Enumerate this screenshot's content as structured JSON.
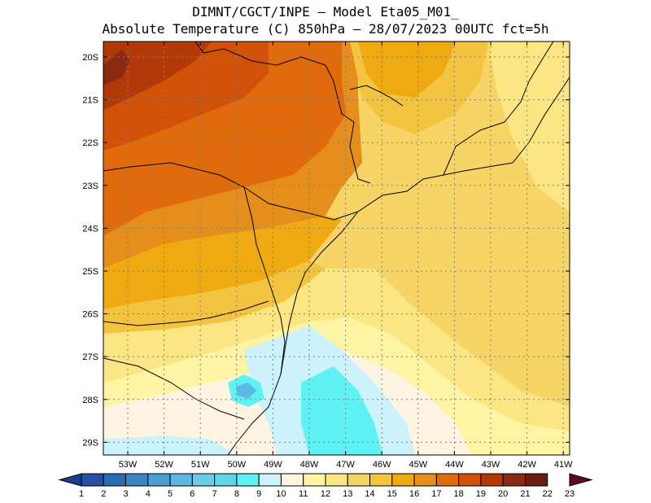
{
  "title": {
    "line1": "DIMNT/CGCT/INPE –  Model Eta05_M01_",
    "line2": "Absolute Temperature (C) 850hPa –  28/07/2023 00UTC fct=5h"
  },
  "map": {
    "lat_labels": [
      "20S",
      "21S",
      "22S",
      "23S",
      "24S",
      "25S",
      "26S",
      "27S",
      "28S",
      "29S"
    ],
    "lon_labels": [
      "53W",
      "52W",
      "51W",
      "50W",
      "49W",
      "48W",
      "47W",
      "46W",
      "45W",
      "44W",
      "43W",
      "42W",
      "41W"
    ]
  },
  "colorbar": {
    "labels": [
      "1",
      "2",
      "3",
      "4",
      "5",
      "6",
      "7",
      "8",
      "9",
      "10",
      "11",
      "12",
      "13",
      "14",
      "15",
      "16",
      "17",
      "18",
      "19",
      "20",
      "21",
      "22",
      "23"
    ],
    "colors": [
      "#1f3d8f",
      "#2451a3",
      "#2c6bb3",
      "#3a86c4",
      "#4aa0d2",
      "#5bb8df",
      "#6ccbe6",
      "#5ed6e8",
      "#5ef2f4",
      "#ccf2fb",
      "#fff3e1",
      "#fff3a4",
      "#fbe683",
      "#f6d466",
      "#f3c43f",
      "#efa911",
      "#e58e1c",
      "#e06b0c",
      "#d25108",
      "#b23a08",
      "#8a2a10",
      "#6b1b10",
      "#5a0e1a"
    ]
  }
}
